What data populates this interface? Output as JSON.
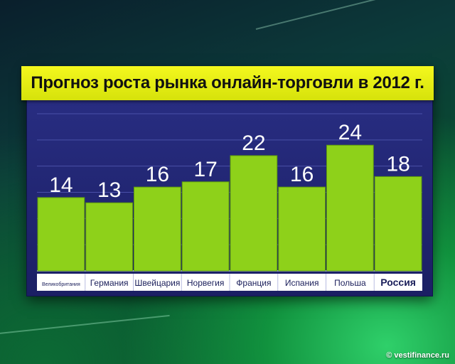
{
  "chart_data": {
    "type": "bar",
    "title": "Прогноз роста рынка онлайн-торговли в 2012 г.",
    "xlabel": "",
    "ylabel": "",
    "ylim": [
      0,
      30
    ],
    "grid": true,
    "categories": [
      "Великобритания",
      "Германия",
      "Швейцария",
      "Норвегия",
      "Франция",
      "Испания",
      "Польша",
      "Россия"
    ],
    "values": [
      14,
      13,
      16,
      17,
      22,
      16,
      24,
      18
    ],
    "colors": {
      "bar": "#8ed11a",
      "panel": "#23287a",
      "title_bg": "#e8ef14"
    }
  },
  "credit": "© vestifinance.ru"
}
